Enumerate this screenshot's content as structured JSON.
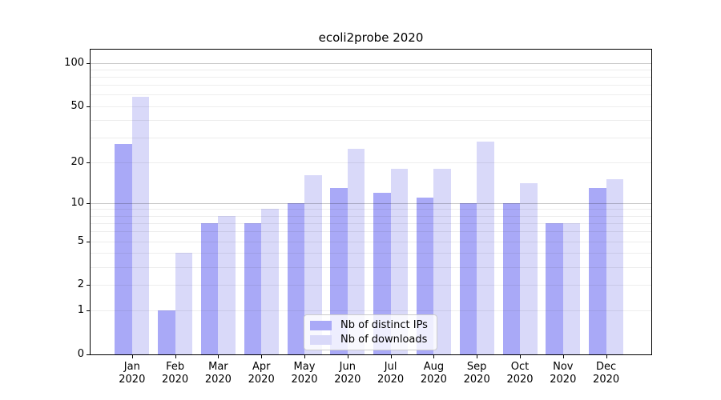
{
  "title": "ecoli2probe 2020",
  "colors": {
    "distinct_ips_bar": "#a9a9f7",
    "downloads_bar": "#d9d9f9",
    "grid_minor": "rgba(0,0,0,0.07)",
    "grid_major": "rgba(0,0,0,0.22)",
    "spine": "#000000",
    "legend_border": "#cccccc",
    "legend_background": "rgba(255,255,255,0.8)",
    "background": "#ffffff"
  },
  "chart_data": {
    "type": "bar",
    "title": "ecoli2probe 2020",
    "y_scale": "log10(value+1)",
    "grid": "horizontal, log-spaced minor lines, darker lines at 10 and 100",
    "categories": [
      "Jan",
      "Feb",
      "Mar",
      "Apr",
      "May",
      "Jun",
      "Jul",
      "Aug",
      "Sep",
      "Oct",
      "Nov",
      "Dec"
    ],
    "x_tick_year": "2020",
    "series": [
      {
        "name": "Nb of distinct IPs",
        "color": "#a9a9f7",
        "values": [
          27,
          1,
          7,
          7,
          10,
          13,
          12,
          11,
          10,
          10,
          7,
          13
        ]
      },
      {
        "name": "Nb of downloads",
        "color": "#d9d9f9",
        "values": [
          58,
          4,
          8,
          9,
          16,
          25,
          18,
          18,
          28,
          14,
          7,
          15
        ]
      }
    ],
    "y_ticks": [
      0,
      1,
      2,
      5,
      10,
      20,
      50,
      100
    ],
    "ylim": [
      0,
      124
    ],
    "xlabel": "",
    "ylabel": "",
    "legend_position": "lower center, inside plot"
  }
}
